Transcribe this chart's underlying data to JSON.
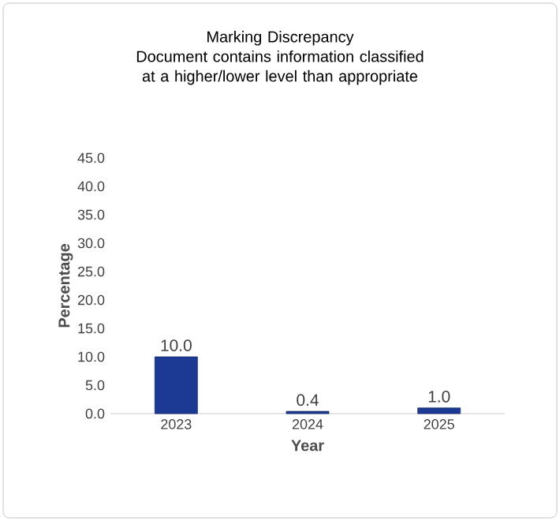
{
  "chart_data": {
    "type": "bar",
    "title": "Marking Discrepancy",
    "subtitle": "Document contains information classified at a higher/lower level than appropriate",
    "xlabel": "Year",
    "ylabel": "Percentage",
    "categories": [
      "2023",
      "2024",
      "2025"
    ],
    "values": [
      10.0,
      0.4,
      1.0
    ],
    "value_labels": [
      "10.0",
      "0.4",
      "1.0"
    ],
    "color": "#1c3a94",
    "ylim": [
      0,
      45
    ],
    "yticks": [
      {
        "value": 0,
        "label": "0.0"
      },
      {
        "value": 5,
        "label": "5.0"
      },
      {
        "value": 10,
        "label": "10.0"
      },
      {
        "value": 15,
        "label": "15.0"
      },
      {
        "value": 20,
        "label": "20.0"
      },
      {
        "value": 25,
        "label": "25.0"
      },
      {
        "value": 30,
        "label": "30.0"
      },
      {
        "value": 35,
        "label": "35.0"
      },
      {
        "value": 40,
        "label": "40.0"
      },
      {
        "value": 45,
        "label": "45.0"
      }
    ],
    "grid": false
  }
}
